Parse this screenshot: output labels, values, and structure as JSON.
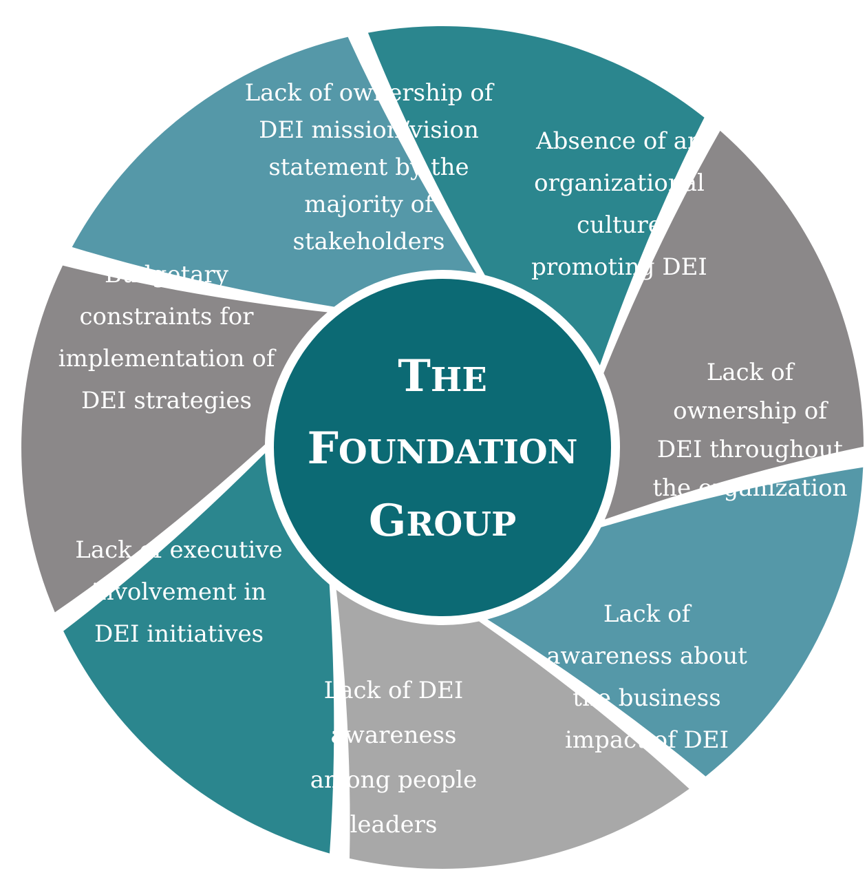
{
  "center": {
    "lines": [
      {
        "first": "T",
        "rest": "HE"
      },
      {
        "first": "F",
        "rest": "OUNDATION"
      },
      {
        "first": "G",
        "rest": "ROUP"
      }
    ]
  },
  "colors": {
    "center": "#0c6a74",
    "teal_dark": "#2b868e",
    "teal_light": "#5598a8",
    "gray_dark": "#8b8889",
    "gray_light": "#a8a8a8",
    "text": "#ffffff"
  },
  "segments": [
    {
      "lines": [
        "Lack of ownership of",
        "DEI mission/vision",
        "statement by the",
        "majority of",
        "stakeholders"
      ],
      "color": "#5598a8"
    },
    {
      "lines": [
        "Absence of an",
        "organizational",
        "culture",
        "promoting DEI"
      ],
      "color": "#2b868e"
    },
    {
      "lines": [
        "Lack of",
        "ownership of",
        "DEI throughout",
        "the organization"
      ],
      "color": "#8b8889"
    },
    {
      "lines": [
        "Lack of",
        "awareness about",
        "the business",
        "impact of DEI"
      ],
      "color": "#5598a8"
    },
    {
      "lines": [
        "Lack of DEI",
        "awareness",
        "among people",
        "leaders"
      ],
      "color": "#a8a8a8"
    },
    {
      "lines": [
        "Lack of executive",
        "involvement in",
        "DEI initiatives"
      ],
      "color": "#2b868e"
    },
    {
      "lines": [
        "Budgetary",
        "constraints for",
        "implementation of",
        "DEI strategies"
      ],
      "color": "#8b8889"
    }
  ]
}
